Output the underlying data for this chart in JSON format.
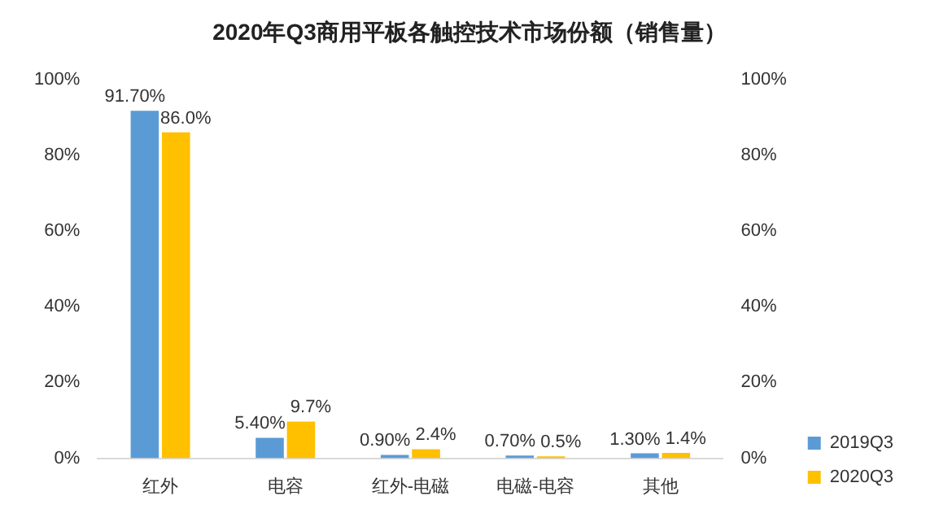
{
  "chart_data": {
    "type": "bar",
    "title": "2020年Q3商用平板各触控技术市场份额（销售量）",
    "categories": [
      "红外",
      "电容",
      "红外-电磁",
      "电磁-电容",
      "其他"
    ],
    "series": [
      {
        "name": "2019Q3",
        "color": "#5b9bd5",
        "values": [
          91.7,
          5.4,
          0.9,
          0.7,
          1.3
        ],
        "value_labels": [
          "91.70%",
          "5.40%",
          "0.90%",
          "0.70%",
          "1.30%"
        ]
      },
      {
        "name": "2020Q3",
        "color": "#ffc000",
        "values": [
          86.0,
          9.7,
          2.4,
          0.5,
          1.4
        ],
        "value_labels": [
          "86.0%",
          "9.7%",
          "2.4%",
          "0.5%",
          "1.4%"
        ]
      }
    ],
    "ylim": [
      0,
      100
    ],
    "yticks": [
      {
        "value": 0,
        "label": "0%"
      },
      {
        "value": 20,
        "label": "20%"
      },
      {
        "value": 40,
        "label": "40%"
      },
      {
        "value": 60,
        "label": "60%"
      },
      {
        "value": 80,
        "label": "80%"
      },
      {
        "value": 100,
        "label": "100%"
      }
    ],
    "y2lim": [
      0,
      100
    ],
    "y2ticks": [
      {
        "value": 0,
        "label": "0%"
      },
      {
        "value": 20,
        "label": "20%"
      },
      {
        "value": 40,
        "label": "40%"
      },
      {
        "value": 60,
        "label": "60%"
      },
      {
        "value": 80,
        "label": "80%"
      },
      {
        "value": 100,
        "label": "100%"
      }
    ],
    "grid": false,
    "legend": "right"
  }
}
